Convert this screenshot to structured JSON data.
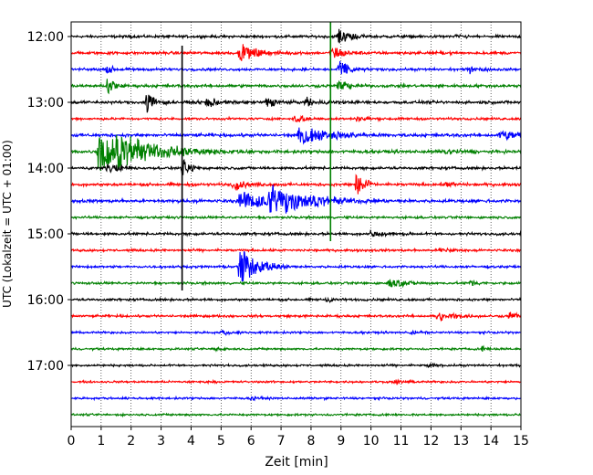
{
  "chart_data": {
    "type": "line",
    "title": "",
    "xlabel": "Zeit  [min]",
    "ylabel": "UTC (Lokalzeit = UTC + 01:00)",
    "xlim": [
      0,
      15
    ],
    "x_ticks": [
      "0",
      "1",
      "2",
      "3",
      "4",
      "5",
      "6",
      "7",
      "8",
      "9",
      "10",
      "11",
      "12",
      "13",
      "14",
      "15"
    ],
    "y_ticks": [
      "12:00",
      "13:00",
      "14:00",
      "15:00",
      "16:00",
      "17:00"
    ],
    "trace_interval_min": 15,
    "start_time": "12:00",
    "grid_x": true,
    "trace_colors": [
      "#000000",
      "#ff0000",
      "#0000ff",
      "#008000"
    ],
    "traces": [
      {
        "start": "12:00",
        "color": "#000000",
        "noise": 2.0,
        "events": [
          {
            "t": 8.9,
            "amp": 8,
            "dur": 0.5
          },
          {
            "t": 12.8,
            "amp": 3,
            "dur": 0.3
          }
        ]
      },
      {
        "start": "12:15",
        "color": "#ff0000",
        "noise": 2.2,
        "events": [
          {
            "t": 5.6,
            "amp": 10,
            "dur": 0.6
          },
          {
            "t": 8.7,
            "amp": 7,
            "dur": 0.5
          }
        ]
      },
      {
        "start": "12:30",
        "color": "#0000ff",
        "noise": 2.0,
        "events": [
          {
            "t": 1.2,
            "amp": 4,
            "dur": 0.3
          },
          {
            "t": 8.9,
            "amp": 10,
            "dur": 0.4
          },
          {
            "t": 13.3,
            "amp": 4,
            "dur": 0.4
          }
        ]
      },
      {
        "start": "12:45",
        "color": "#008000",
        "noise": 2.2,
        "events": [
          {
            "t": 1.2,
            "amp": 12,
            "dur": 0.2
          },
          {
            "t": 8.9,
            "amp": 6,
            "dur": 0.4
          }
        ]
      },
      {
        "start": "13:00",
        "color": "#000000",
        "noise": 2.2,
        "events": [
          {
            "t": 2.5,
            "amp": 12,
            "dur": 0.3
          },
          {
            "t": 4.5,
            "amp": 8,
            "dur": 0.3
          },
          {
            "t": 6.5,
            "amp": 6,
            "dur": 0.4
          },
          {
            "t": 7.8,
            "amp": 5,
            "dur": 0.5
          }
        ]
      },
      {
        "start": "13:15",
        "color": "#ff0000",
        "noise": 1.8,
        "events": [
          {
            "t": 7.4,
            "amp": 5,
            "dur": 0.4
          },
          {
            "t": 9.5,
            "amp": 3,
            "dur": 0.5
          }
        ]
      },
      {
        "start": "13:30",
        "color": "#0000ff",
        "noise": 2.4,
        "events": [
          {
            "t": 7.6,
            "amp": 10,
            "dur": 1.2
          },
          {
            "t": 14.3,
            "amp": 6,
            "dur": 1.0
          }
        ]
      },
      {
        "start": "13:45",
        "color": "#008000",
        "noise": 2.4,
        "events": [
          {
            "t": 0.9,
            "amp": 22,
            "dur": 1.0
          },
          {
            "t": 1.5,
            "amp": 14,
            "dur": 1.8
          },
          {
            "t": 12.5,
            "amp": 3,
            "dur": 0.5
          }
        ]
      },
      {
        "start": "14:00",
        "color": "#000000",
        "noise": 2.0,
        "events": [
          {
            "t": 1.2,
            "amp": 5,
            "dur": 0.6
          },
          {
            "t": 3.7,
            "amp": 10,
            "dur": 0.3
          }
        ]
      },
      {
        "start": "14:15",
        "color": "#ff0000",
        "noise": 2.2,
        "events": [
          {
            "t": 5.4,
            "amp": 7,
            "dur": 0.4
          },
          {
            "t": 9.5,
            "amp": 14,
            "dur": 0.3
          },
          {
            "t": 12.5,
            "amp": 3,
            "dur": 0.4
          }
        ]
      },
      {
        "start": "14:30",
        "color": "#0000ff",
        "noise": 2.4,
        "events": [
          {
            "t": 5.6,
            "amp": 10,
            "dur": 1.6
          },
          {
            "t": 6.6,
            "amp": 18,
            "dur": 1.2
          }
        ]
      },
      {
        "start": "14:45",
        "color": "#008000",
        "noise": 1.8,
        "events": []
      },
      {
        "start": "15:00",
        "color": "#000000",
        "noise": 2.0,
        "events": [
          {
            "t": 10.0,
            "amp": 5,
            "dur": 0.5
          }
        ]
      },
      {
        "start": "15:15",
        "color": "#ff0000",
        "noise": 1.8,
        "events": [
          {
            "t": 12.3,
            "amp": 3,
            "dur": 0.4
          }
        ]
      },
      {
        "start": "15:30",
        "color": "#0000ff",
        "noise": 1.8,
        "events": [
          {
            "t": 5.6,
            "amp": 22,
            "dur": 0.6
          }
        ]
      },
      {
        "start": "15:45",
        "color": "#008000",
        "noise": 1.8,
        "events": [
          {
            "t": 10.6,
            "amp": 6,
            "dur": 0.6
          },
          {
            "t": 13.3,
            "amp": 3,
            "dur": 0.4
          }
        ]
      },
      {
        "start": "16:00",
        "color": "#000000",
        "noise": 1.8,
        "events": [
          {
            "t": 8.5,
            "amp": 3,
            "dur": 0.4
          }
        ]
      },
      {
        "start": "16:15",
        "color": "#ff0000",
        "noise": 1.8,
        "events": [
          {
            "t": 12.2,
            "amp": 6,
            "dur": 0.6
          },
          {
            "t": 14.6,
            "amp": 5,
            "dur": 0.4
          }
        ]
      },
      {
        "start": "16:30",
        "color": "#0000ff",
        "noise": 1.6,
        "events": [
          {
            "t": 5.0,
            "amp": 3,
            "dur": 0.4
          },
          {
            "t": 11.3,
            "amp": 3,
            "dur": 0.4
          }
        ]
      },
      {
        "start": "16:45",
        "color": "#008000",
        "noise": 1.6,
        "events": [
          {
            "t": 4.8,
            "amp": 3,
            "dur": 0.3
          },
          {
            "t": 13.7,
            "amp": 3,
            "dur": 0.3
          }
        ]
      },
      {
        "start": "17:00",
        "color": "#000000",
        "noise": 1.6,
        "events": [
          {
            "t": 11.9,
            "amp": 3,
            "dur": 0.3
          }
        ]
      },
      {
        "start": "17:15",
        "color": "#ff0000",
        "noise": 1.6,
        "events": [
          {
            "t": 10.8,
            "amp": 3,
            "dur": 0.3
          }
        ]
      },
      {
        "start": "17:30",
        "color": "#0000ff",
        "noise": 1.6,
        "events": [
          {
            "t": 6.0,
            "amp": 2.5,
            "dur": 0.3
          }
        ]
      },
      {
        "start": "17:45",
        "color": "#008000",
        "noise": 1.6,
        "events": []
      }
    ],
    "spikes": [
      {
        "t": 3.7,
        "from_trace": 1,
        "to_trace": 15,
        "color": "#000000"
      },
      {
        "t": 8.65,
        "from_trace": 0,
        "to_trace": 12,
        "color": "#008000"
      }
    ]
  }
}
